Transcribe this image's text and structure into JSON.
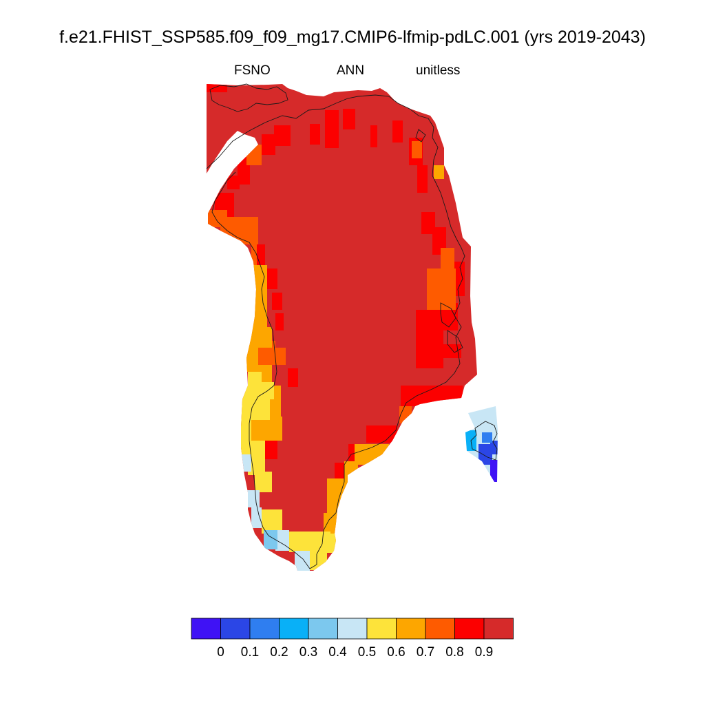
{
  "title": "f.e21.FHIST_SSP585.f09_f09_mg17.CMIP6-lfmip-pdLC.001 (yrs 2019-2043)",
  "subtitle_left": "FSNO",
  "subtitle_center": "ANN",
  "subtitle_right": "unitless",
  "colorbar": {
    "colors": [
      "#3f12f5",
      "#2b46e6",
      "#2f7ef0",
      "#09b0f7",
      "#7cc8ee",
      "#c8e6f5",
      "#fde33a",
      "#fda600",
      "#fe5b00",
      "#fc0000",
      "#d62a2a"
    ],
    "tick_labels": [
      "0",
      "0.1",
      "0.2",
      "0.3",
      "0.4",
      "0.5",
      "0.6",
      "0.7",
      "0.8",
      "0.9"
    ]
  },
  "map_data": {
    "variable": "FSNO",
    "season": "ANN",
    "region": "Greenland",
    "levels": [
      0,
      0.1,
      0.2,
      0.3,
      0.4,
      0.5,
      0.6,
      0.7,
      0.8,
      0.9
    ],
    "interior_fraction_class": ">0.9",
    "west_coast_fraction_classes": [
      "0.8-0.9",
      "0.7-0.8",
      "0.6-0.7",
      "0.5-0.6",
      "0.4-0.5"
    ],
    "southern_tip_fraction_classes": [
      "0.3-0.4",
      "0.4-0.5",
      "0.5-0.6"
    ],
    "iceland_fraction_classes": [
      "0.1-0.2",
      "0.2-0.3",
      "0.4-0.5"
    ]
  }
}
